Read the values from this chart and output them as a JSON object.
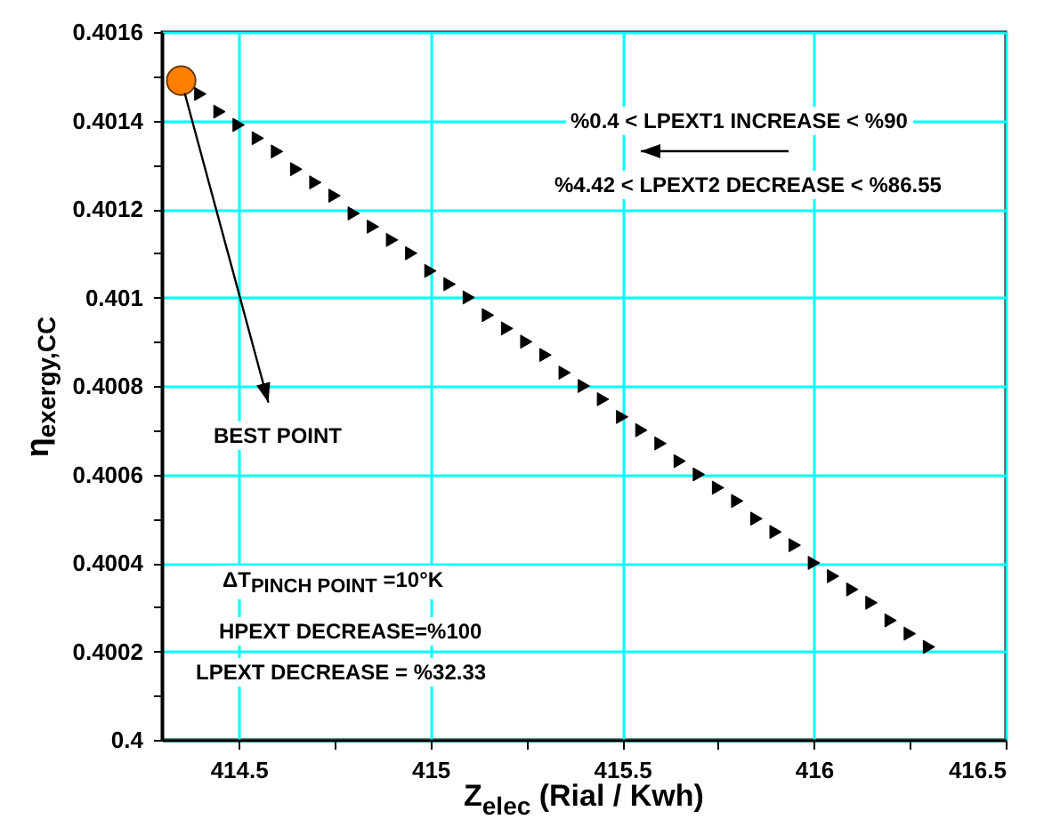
{
  "chart_data": {
    "type": "scatter",
    "xlabel": "Z$_{elec}$ (Rial / Kwh)",
    "ylabel": "η$_{exergy,CC}$",
    "annotations": [
      "%0.4 < LPEXT1 INCREASE < %90",
      "%4.42 < LPEXT2 DECREASE < %86.55",
      {
        "text": "BEST POINT",
        "x": 414.35,
        "y": 0.40149
      },
      "ΔT$_{PINCH POINT}$ =10°K",
      "HPEXT DECREASE=%100",
      "LPEXT DECREASE = %32.33"
    ],
    "series": [
      {
        "color": "#000000",
        "marker": "triangle",
        "x": [
          414.4,
          414.45,
          414.5,
          414.55,
          414.6,
          414.65,
          414.7,
          414.75,
          414.8,
          414.85,
          414.9,
          414.95,
          415,
          415.05,
          415.1,
          415.15,
          415.2,
          415.25,
          415.3,
          415.35,
          415.4,
          415.45,
          415.5,
          415.55,
          415.6,
          415.65,
          415.7,
          415.75,
          415.8,
          415.85,
          415.9,
          415.95,
          416,
          416.05,
          416.1,
          416.15,
          416.2,
          416.25,
          416.3
        ],
        "values": [
          0.40146,
          0.40142,
          0.40139,
          0.40136,
          0.40133,
          0.40129,
          0.40126,
          0.40123,
          0.40119,
          0.40116,
          0.40113,
          0.4011,
          0.40106,
          0.40103,
          0.401,
          0.40096,
          0.40093,
          0.4009,
          0.40087,
          0.40083,
          0.4008,
          0.40077,
          0.40073,
          0.4007,
          0.40067,
          0.40063,
          0.4006,
          0.40057,
          0.40054,
          0.4005,
          0.40047,
          0.40044,
          0.4004,
          0.40037,
          0.40034,
          0.40031,
          0.40027,
          0.40024,
          0.40021
        ]
      },
      {
        "color": "#ff8000",
        "marker": "circle",
        "x": [
          414.35
        ],
        "values": [
          0.40149
        ]
      }
    ],
    "xlim": [
      414.3,
      416.5
    ],
    "xticks": [
      414.5,
      {
        "value": 414.75,
        "label": null
      },
      415,
      {
        "value": 415.25,
        "label": null
      },
      415.5,
      {
        "value": 415.75,
        "label": null
      },
      416,
      {
        "value": 416.25,
        "label": null
      },
      416.5
    ],
    "ylim": [
      0.4,
      0.4016
    ],
    "yticks": [
      0.4,
      {
        "value": 0.4001,
        "label": null
      },
      0.4002,
      {
        "value": 0.4003,
        "label": null
      },
      0.4004,
      {
        "value": 0.4005,
        "label": null
      },
      0.4006,
      {
        "value": 0.4007,
        "label": null
      },
      0.4008,
      {
        "value": 0.4009,
        "label": null
      },
      0.401,
      {
        "value": 0.4011,
        "label": null
      },
      0.4012,
      {
        "value": 0.4013,
        "label": null
      },
      0.4014,
      {
        "value": 0.4015,
        "label": null
      },
      0.4016
    ],
    "grid": true
  }
}
